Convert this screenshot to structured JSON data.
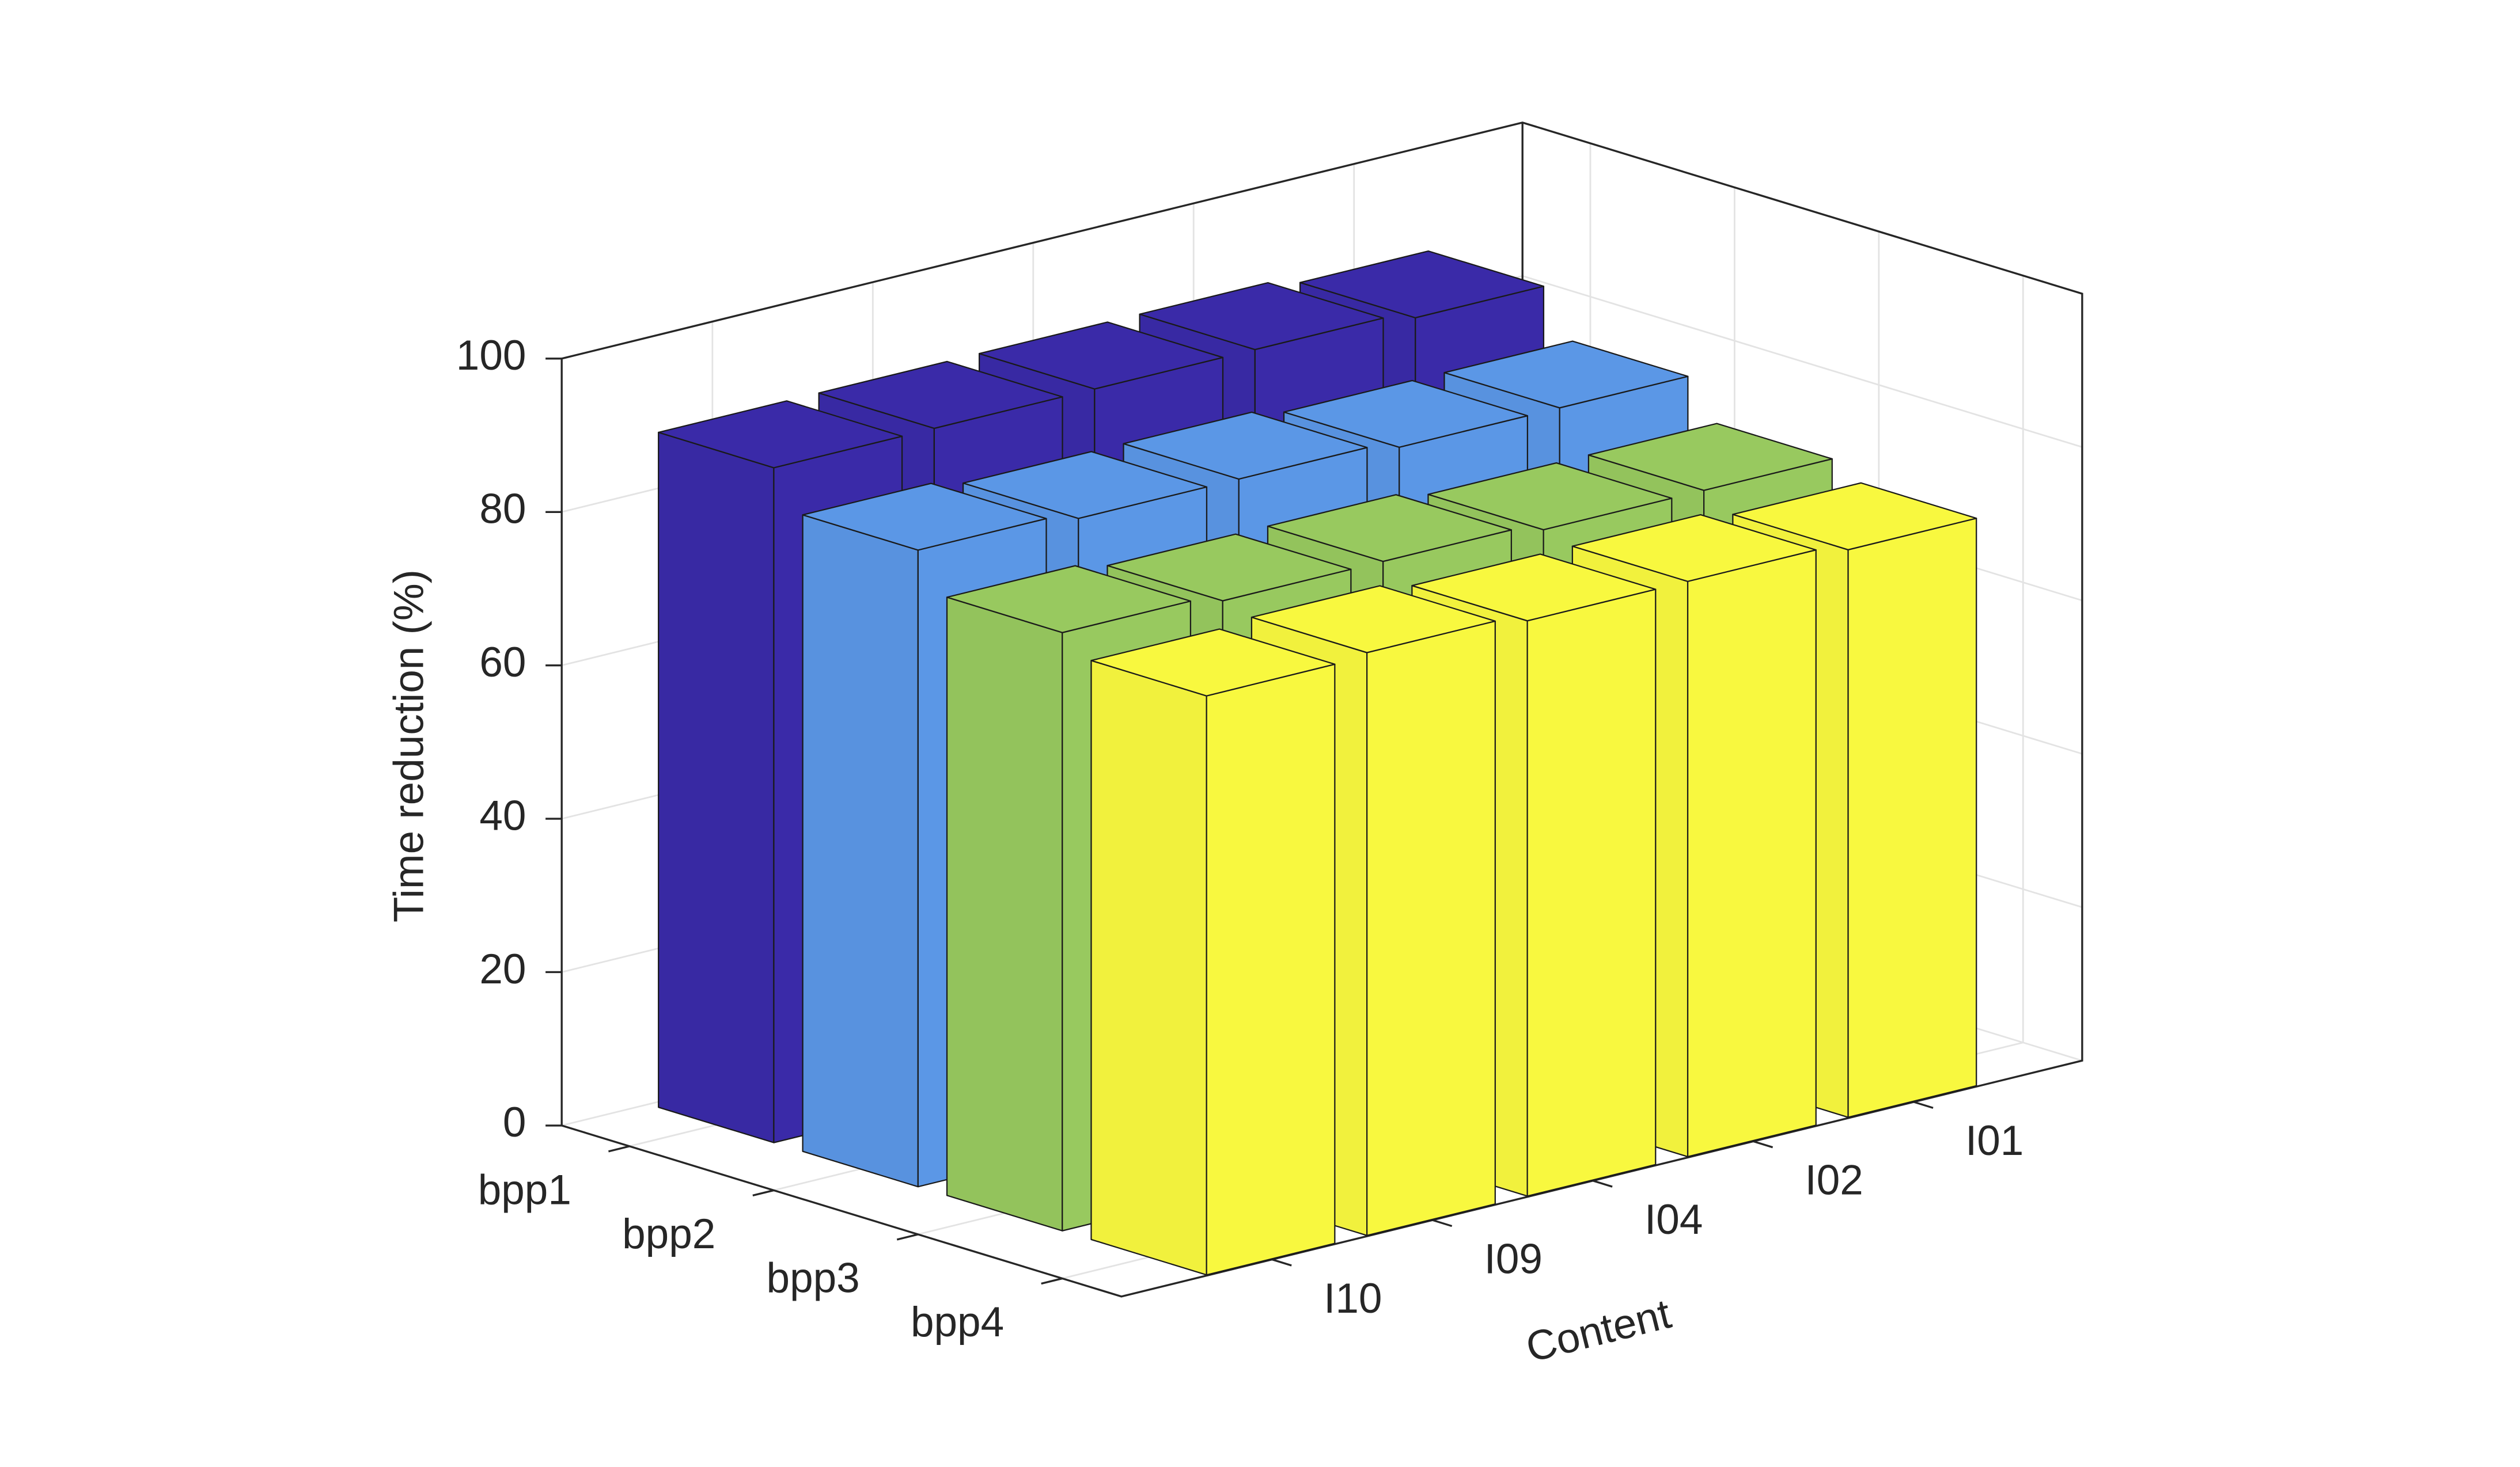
{
  "chart_data": {
    "type": "bar3d",
    "xlabel": "Content",
    "zlabel": "Time reduction (%)",
    "categories": [
      "I10",
      "I09",
      "I04",
      "I02",
      "I01"
    ],
    "series": [
      {
        "name": "bpp1",
        "color": "#3a2aa8",
        "values": [
          88,
          88,
          88,
          88,
          87
        ]
      },
      {
        "name": "bpp2",
        "color": "#5b97e6",
        "values": [
          83,
          82,
          82,
          81,
          81
        ]
      },
      {
        "name": "bpp3",
        "color": "#98c95f",
        "values": [
          78,
          77,
          77,
          76,
          76
        ]
      },
      {
        "name": "bpp4",
        "color": "#f8f83f",
        "values": [
          75.5,
          76,
          75,
          75,
          74
        ]
      }
    ],
    "zlim": [
      0,
      100
    ],
    "zticks": [
      0,
      20,
      40,
      60,
      80,
      100
    ],
    "grid": true
  }
}
